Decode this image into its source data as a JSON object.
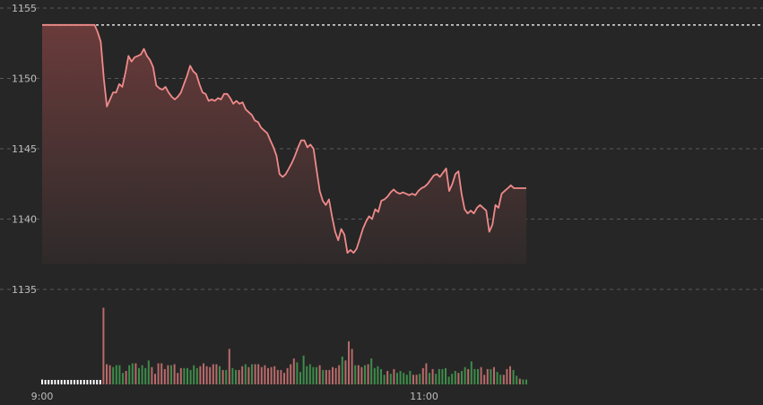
{
  "chart_data": [
    {
      "type": "area",
      "title": "",
      "xlabel": "",
      "ylabel": "",
      "ylim": [
        1132,
        1155.5
      ],
      "yticks": [
        "1155",
        "1150",
        "1145",
        "1140",
        "1135"
      ],
      "xticks": [
        "9:00",
        "11:00"
      ],
      "grid": true,
      "reference_value": 1153.8,
      "colors": {
        "line": "#f08a8a",
        "area_top": "#6a3b3b",
        "area_bottom": "#2e2a2a",
        "reference": "#e0e0e0",
        "grid": "#5a5a5a",
        "background": "#262626"
      },
      "series": [
        {
          "values": [
            1153.8,
            1153.8,
            1153.8,
            1153.8,
            1153.8,
            1153.8,
            1153.8,
            1153.8,
            1153.8,
            1153.8,
            1153.8,
            1153.8,
            1153.8,
            1153.8,
            1153.8,
            1153.8,
            1153.8,
            1153.8,
            1153.3,
            1152.6,
            1150.0,
            1148.0,
            1148.5,
            1149.0,
            1149.0,
            1149.6,
            1149.4,
            1150.4,
            1151.6,
            1151.2,
            1151.5,
            1151.6,
            1151.7,
            1152.1,
            1151.6,
            1151.3,
            1150.8,
            1149.5,
            1149.3,
            1149.2,
            1149.4,
            1149.0,
            1148.7,
            1148.5,
            1148.7,
            1149.0,
            1149.6,
            1150.2,
            1150.9,
            1150.5,
            1150.3,
            1149.6,
            1149.0,
            1148.9,
            1148.4,
            1148.5,
            1148.4,
            1148.6,
            1148.5,
            1148.9,
            1148.9,
            1148.6,
            1148.2,
            1148.4,
            1148.2,
            1148.3,
            1147.8,
            1147.6,
            1147.4,
            1147.0,
            1146.9,
            1146.5,
            1146.3,
            1146.1,
            1145.6,
            1145.1,
            1144.5,
            1143.2,
            1143.0,
            1143.2,
            1143.6,
            1144.0,
            1144.5,
            1145.1,
            1145.6,
            1145.6,
            1145.1,
            1145.3,
            1145.0,
            1143.5,
            1142.0,
            1141.3,
            1141.0,
            1141.4,
            1140.2,
            1139.1,
            1138.5,
            1139.3,
            1138.9,
            1137.6,
            1137.8,
            1137.6,
            1137.9,
            1138.6,
            1139.3,
            1139.8,
            1140.2,
            1140.0,
            1140.7,
            1140.5,
            1141.3,
            1141.4,
            1141.6,
            1141.9,
            1142.1,
            1141.9,
            1141.8,
            1141.9,
            1141.8,
            1141.7,
            1141.8,
            1141.7,
            1142.0,
            1142.2,
            1142.3,
            1142.5,
            1142.8,
            1143.1,
            1143.2,
            1143.0,
            1143.3,
            1143.6,
            1142.0,
            1142.5,
            1143.2,
            1143.4,
            1141.8,
            1140.7,
            1140.4,
            1140.6,
            1140.4,
            1140.8,
            1141.0,
            1140.8,
            1140.6,
            1139.1,
            1139.6,
            1141.0,
            1140.8,
            1141.8,
            1142.0,
            1142.2,
            1142.4,
            1142.2,
            1142.2,
            1142.2,
            1142.2,
            1142.2
          ]
        }
      ]
    },
    {
      "type": "bar",
      "title": "",
      "series": [
        {
          "values": [
            5,
            0,
            0,
            0,
            0,
            0,
            0,
            0,
            0,
            0,
            0,
            0,
            0,
            0,
            0,
            0,
            0,
            0,
            0,
            80,
            21,
            20,
            18,
            20,
            20,
            12,
            14,
            20,
            22,
            22,
            17,
            20,
            17,
            25,
            18,
            11,
            22,
            22,
            16,
            20,
            20,
            21,
            12,
            17,
            17,
            17,
            15,
            20,
            17,
            19,
            22,
            19,
            18,
            21,
            21,
            19,
            15,
            15,
            37,
            17,
            15,
            15,
            19,
            21,
            18,
            21,
            21,
            21,
            18,
            20,
            17,
            18,
            19,
            15,
            15,
            12,
            17,
            21,
            27,
            23,
            13,
            30,
            19,
            21,
            18,
            18,
            20,
            15,
            15,
            15,
            18,
            17,
            20,
            29,
            25,
            45,
            37,
            20,
            20,
            18,
            20,
            21,
            27,
            17,
            19,
            16,
            10,
            14,
            11,
            16,
            12,
            14,
            12,
            10,
            14,
            10,
            10,
            11,
            17,
            22,
            12,
            16,
            11,
            16,
            16,
            17,
            8,
            11,
            14,
            12,
            14,
            18,
            16,
            24,
            16,
            16,
            18,
            10,
            16,
            16,
            18,
            13,
            10,
            10,
            16,
            19,
            15,
            9,
            6,
            5,
            5
          ]
        }
      ]
    }
  ]
}
